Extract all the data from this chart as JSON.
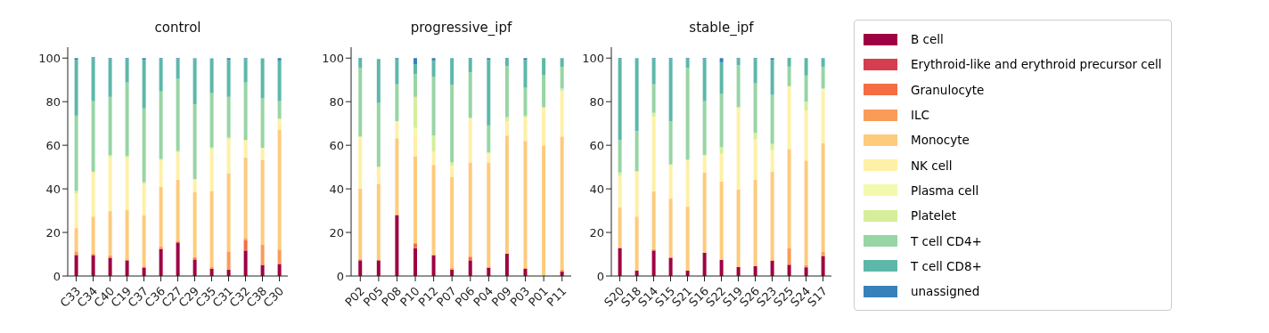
{
  "chart_data": [
    {
      "type": "bar",
      "title": "control",
      "stacked": true,
      "ylim": [
        0,
        105
      ],
      "yticks": [
        0,
        20,
        40,
        60,
        80,
        100
      ],
      "grid": false,
      "legend": false,
      "categories": [
        "C33",
        "C34",
        "C40",
        "C19",
        "C37",
        "C36",
        "C27",
        "C29",
        "C35",
        "C31",
        "C32",
        "C38",
        "C30"
      ],
      "series": [
        {
          "color": "#9e0142",
          "values": [
            9.6,
            9.6,
            8.4,
            7.2,
            3.9,
            12.4,
            15.4,
            7.4,
            3.3,
            2.9,
            11.7,
            5.1,
            5.5
          ]
        },
        {
          "color": "#d53e4f",
          "values": [
            0,
            0,
            0,
            0,
            0,
            0,
            0,
            0,
            0,
            0,
            0,
            0,
            0
          ]
        },
        {
          "color": "#f46d43",
          "values": [
            0.5,
            0,
            0,
            0,
            0,
            0.5,
            0,
            0.8,
            0,
            0,
            4.8,
            0,
            0.4
          ]
        },
        {
          "color": "#fa9b58",
          "values": [
            1.2,
            0.6,
            1.1,
            0.4,
            0.5,
            0.7,
            0.8,
            0.4,
            0.8,
            8.4,
            0.9,
            9.4,
            6.2
          ]
        },
        {
          "color": "#fdcb7c",
          "values": [
            10.7,
            17.1,
            20.3,
            22.6,
            23.4,
            27.3,
            28.0,
            29.9,
            34.9,
            35.9,
            36.9,
            38.9,
            55.0
          ]
        },
        {
          "color": "#fef0a7",
          "values": [
            15.9,
            20.2,
            24.9,
            24.1,
            14.6,
            12.1,
            12.5,
            5.9,
            19.4,
            15.7,
            7.7,
            5.4,
            4.7
          ]
        },
        {
          "color": "#f3faad",
          "values": [
            0,
            0,
            0,
            0,
            0,
            0,
            0,
            0,
            0,
            0,
            0,
            0,
            0
          ]
        },
        {
          "color": "#d5ee9b",
          "values": [
            1.1,
            0.4,
            0.7,
            0.8,
            0.6,
            0.7,
            0.7,
            0,
            0.6,
            0.7,
            0.5,
            0,
            0.5
          ]
        },
        {
          "color": "#98d5a4",
          "values": [
            34.6,
            32.3,
            26.8,
            33.7,
            33.9,
            31.0,
            33.1,
            34.4,
            24.9,
            18.6,
            26.3,
            22.7,
            7.9
          ]
        },
        {
          "color": "#5db8a9",
          "values": [
            25.6,
            19.8,
            17.4,
            10.8,
            22.3,
            14.9,
            9.1,
            20.7,
            16.0,
            17.0,
            10.8,
            18.4,
            18.7
          ]
        },
        {
          "color": "#3681ba",
          "values": [
            0.8,
            0.4,
            0.4,
            0.4,
            0.8,
            0.4,
            0.4,
            0.4,
            null,
            0.8,
            0.4,
            null,
            1.1
          ]
        }
      ]
    },
    {
      "type": "bar",
      "title": "progressive_ipf",
      "stacked": true,
      "ylim": [
        0,
        105
      ],
      "yticks": [
        0,
        20,
        40,
        60,
        80,
        100
      ],
      "grid": false,
      "legend": false,
      "categories": [
        "P02",
        "P05",
        "P08",
        "P10",
        "P12",
        "P07",
        "P06",
        "P04",
        "P09",
        "P03",
        "P01",
        "P11"
      ],
      "series": [
        {
          "color": "#9e0142",
          "values": [
            7.2,
            7.2,
            27.8,
            12.8,
            9.6,
            3.0,
            7.2,
            3.9,
            10.2,
            3.3,
            0,
            2.0
          ]
        },
        {
          "color": "#d53e4f",
          "values": [
            0,
            0,
            0,
            0,
            0,
            0,
            0,
            0,
            0,
            0,
            0,
            0
          ]
        },
        {
          "color": "#f46d43",
          "values": [
            0,
            0,
            0,
            1.9,
            0,
            0,
            1.5,
            0,
            0,
            0,
            0,
            0
          ]
        },
        {
          "color": "#fa9b58",
          "values": [
            0.7,
            0.4,
            0.4,
            0.4,
            0,
            0.8,
            0.6,
            0,
            0,
            0.5,
            0,
            1.0
          ]
        },
        {
          "color": "#fdcb7c",
          "values": [
            32.3,
            34.7,
            35.0,
            39.9,
            41.4,
            41.7,
            42.8,
            48.2,
            54.3,
            58.2,
            59.9,
            61.0
          ]
        },
        {
          "color": "#fef0a7",
          "values": [
            23.5,
            7.4,
            7.9,
            10.7,
            6.0,
            5.2,
            20.2,
            4.2,
            6.6,
            10.7,
            17.5,
            21.0
          ]
        },
        {
          "color": "#f3faad",
          "values": [
            0,
            0,
            0,
            2.3,
            0,
            0,
            0,
            0,
            0,
            0,
            0,
            0
          ]
        },
        {
          "color": "#d5ee9b",
          "values": [
            0.4,
            0.5,
            0,
            14.2,
            7.5,
            1.4,
            0.3,
            0.4,
            1.8,
            0.9,
            0,
            1.0
          ]
        },
        {
          "color": "#98d5a4",
          "values": [
            31.5,
            29.2,
            16.9,
            10.4,
            26.8,
            35.6,
            20.9,
            12.4,
            23.5,
            12.8,
            14.7,
            10.0
          ]
        },
        {
          "color": "#5db8a9",
          "values": [
            4.5,
            20.2,
            11.4,
            4.6,
            7.5,
            12.3,
            6.1,
            30.1,
            3.2,
            12.8,
            7.9,
            4.0
          ]
        },
        {
          "color": "#3681ba",
          "values": [
            0,
            0,
            0.6,
            2.8,
            1.2,
            0,
            0.4,
            0.8,
            0.4,
            0.8,
            0,
            0
          ]
        }
      ]
    },
    {
      "type": "bar",
      "title": "stable_ipf",
      "stacked": true,
      "ylim": [
        0,
        105
      ],
      "yticks": [
        0,
        20,
        40,
        60,
        80,
        100
      ],
      "grid": false,
      "legend": "right",
      "categories": [
        "S20",
        "S18",
        "S14",
        "S15",
        "S21",
        "S16",
        "S22",
        "S19",
        "S26",
        "S23",
        "S25",
        "S24",
        "S17"
      ],
      "series": [
        {
          "name": "B cell",
          "color": "#9e0142",
          "values": [
            12.8,
            2.5,
            11.7,
            8.4,
            2.5,
            10.7,
            7.4,
            4.1,
            4.5,
            7.0,
            5.2,
            4.0,
            9.0
          ]
        },
        {
          "name": "Erythroid-like and erythroid precursor cell",
          "color": "#d53e4f",
          "values": [
            0,
            0,
            0,
            0,
            0,
            0,
            0,
            0,
            0,
            0,
            0,
            0,
            0
          ]
        },
        {
          "name": "Granulocyte",
          "color": "#f46d43",
          "values": [
            0,
            0,
            0,
            0,
            0,
            0,
            0,
            0,
            0,
            0,
            0,
            0,
            0.5
          ]
        },
        {
          "name": "ILC",
          "color": "#fa9b58",
          "values": [
            0.4,
            0,
            0.7,
            0.4,
            0,
            0,
            0,
            0,
            0,
            0.4,
            7.5,
            1.0,
            1.5
          ]
        },
        {
          "name": "Monocyte",
          "color": "#fdcb7c",
          "values": [
            18.2,
            24.8,
            26.4,
            26.7,
            29.3,
            36.8,
            36.0,
            35.6,
            39.7,
            40.5,
            45.6,
            48.0,
            50.0
          ]
        },
        {
          "name": "NK cell",
          "color": "#fef0a7",
          "values": [
            14.5,
            20.5,
            34.3,
            15.7,
            21.5,
            8.0,
            12.7,
            37.4,
            18.5,
            10.0,
            28.8,
            23.0,
            24.0
          ]
        },
        {
          "name": "Plasma cell",
          "color": "#f3faad",
          "values": [
            0,
            0,
            0,
            0,
            0,
            0,
            0,
            0,
            0,
            0,
            0,
            0,
            1.0
          ]
        },
        {
          "name": "Platelet",
          "color": "#d5ee9b",
          "values": [
            1.6,
            0.3,
            1.8,
            0,
            0,
            0,
            3.0,
            0.4,
            3.0,
            2.7,
            0,
            4.0,
            0
          ]
        },
        {
          "name": "T cell CD4+",
          "color": "#98d5a4",
          "values": [
            14.9,
            18.4,
            13.1,
            19.9,
            42.2,
            24.7,
            24.4,
            19.2,
            22.7,
            22.5,
            9.0,
            12.0,
            10.0
          ]
        },
        {
          "name": "T cell CD8+",
          "color": "#5db8a9",
          "values": [
            37.2,
            33.5,
            11.6,
            28.5,
            4.1,
            19.4,
            14.6,
            2.9,
            11.2,
            16.1,
            4.0,
            8.0,
            4.0
          ]
        },
        {
          "name": "unassigned",
          "color": "#3681ba",
          "values": [
            0.4,
            0,
            0.4,
            0.4,
            0.4,
            0.4,
            1.9,
            0.4,
            0.4,
            0.8,
            0,
            0,
            0
          ]
        }
      ]
    }
  ]
}
